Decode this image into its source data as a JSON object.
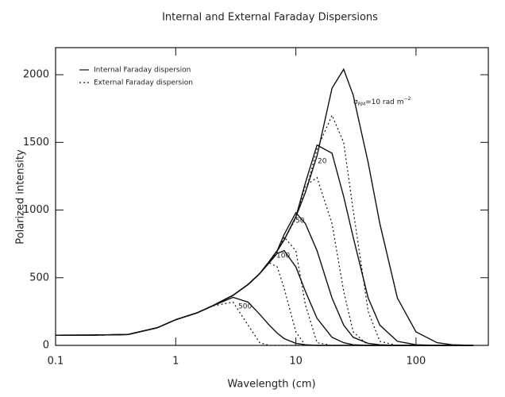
{
  "chart_data": {
    "type": "line",
    "title": "Internal and External Faraday Dispersions",
    "x_label": "Wavelength (cm)",
    "y_label": "Polarized intensity",
    "log_x": true,
    "xlim": [
      0.1,
      400
    ],
    "xticks": [
      0.1,
      1,
      10,
      100
    ],
    "ylim": [
      0,
      2200
    ],
    "yticks": [
      0,
      500,
      1000,
      1500,
      2000
    ],
    "color": "#111111",
    "x": [
      0.1,
      0.2,
      0.4,
      0.7,
      1,
      1.5,
      2,
      3,
      4,
      5,
      6,
      7,
      8,
      10,
      12,
      15,
      20,
      25,
      30,
      40,
      50,
      70,
      100,
      150,
      200,
      300
    ],
    "series": [
      {
        "name": "Internal Faraday dispersion",
        "dash": "solid",
        "curves": [
          {
            "label": {
              "symbol": "σ",
              "subscript": "RM",
              "text": "=10 rad m",
              "superscript": "−2"
            },
            "values": [
              75,
              76,
              80,
              130,
              190,
              240,
              290,
              370,
              450,
              530,
              620,
              700,
              780,
              950,
              1130,
              1400,
              1900,
              2040,
              1850,
              1350,
              900,
              350,
              100,
              20,
              5,
              0
            ]
          },
          {
            "label": "20",
            "values": [
              75,
              76,
              80,
              130,
              190,
              240,
              290,
              370,
              450,
              530,
              620,
              700,
              780,
              950,
              1200,
              1480,
              1420,
              1100,
              800,
              350,
              150,
              30,
              5,
              0,
              0,
              0
            ]
          },
          {
            "label": "50",
            "values": [
              75,
              76,
              80,
              130,
              190,
              240,
              290,
              370,
              450,
              530,
              620,
              700,
              820,
              980,
              900,
              700,
              350,
              150,
              60,
              15,
              5,
              0,
              0,
              0,
              0,
              0
            ]
          },
          {
            "label": "100",
            "values": [
              75,
              76,
              80,
              130,
              190,
              240,
              290,
              370,
              450,
              530,
              610,
              680,
              700,
              580,
              400,
              200,
              60,
              20,
              5,
              0,
              0,
              0,
              0,
              0,
              0,
              0
            ]
          },
          {
            "label": "500",
            "values": [
              75,
              76,
              80,
              130,
              190,
              240,
              290,
              355,
              320,
              230,
              150,
              90,
              50,
              15,
              5,
              0,
              0,
              0,
              0,
              0,
              0,
              0,
              0,
              0,
              0,
              0
            ]
          }
        ]
      },
      {
        "name": "External Faraday dispersion",
        "dash": "dotted",
        "curves": [
          {
            "values": [
              75,
              76,
              80,
              130,
              190,
              240,
              290,
              370,
              450,
              530,
              620,
              700,
              780,
              950,
              1130,
              1450,
              1700,
              1500,
              1000,
              250,
              30,
              0,
              0,
              0,
              0,
              0
            ]
          },
          {
            "values": [
              75,
              76,
              80,
              130,
              190,
              240,
              290,
              370,
              450,
              530,
              620,
              700,
              780,
              940,
              1180,
              1240,
              900,
              400,
              100,
              0,
              0,
              0,
              0,
              0,
              0,
              0
            ]
          },
          {
            "values": [
              75,
              76,
              80,
              130,
              190,
              240,
              290,
              370,
              450,
              530,
              620,
              690,
              800,
              700,
              300,
              20,
              0,
              0,
              0,
              0,
              0,
              0,
              0,
              0,
              0,
              0
            ]
          },
          {
            "values": [
              75,
              76,
              80,
              130,
              190,
              240,
              290,
              370,
              450,
              530,
              610,
              580,
              420,
              100,
              0,
              0,
              0,
              0,
              0,
              0,
              0,
              0,
              0,
              0,
              0,
              0
            ]
          },
          {
            "values": [
              75,
              76,
              80,
              130,
              190,
              240,
              290,
              320,
              150,
              20,
              0,
              0,
              0,
              0,
              0,
              0,
              0,
              0,
              0,
              0,
              0,
              0,
              0,
              0,
              0,
              0
            ]
          }
        ]
      }
    ]
  }
}
